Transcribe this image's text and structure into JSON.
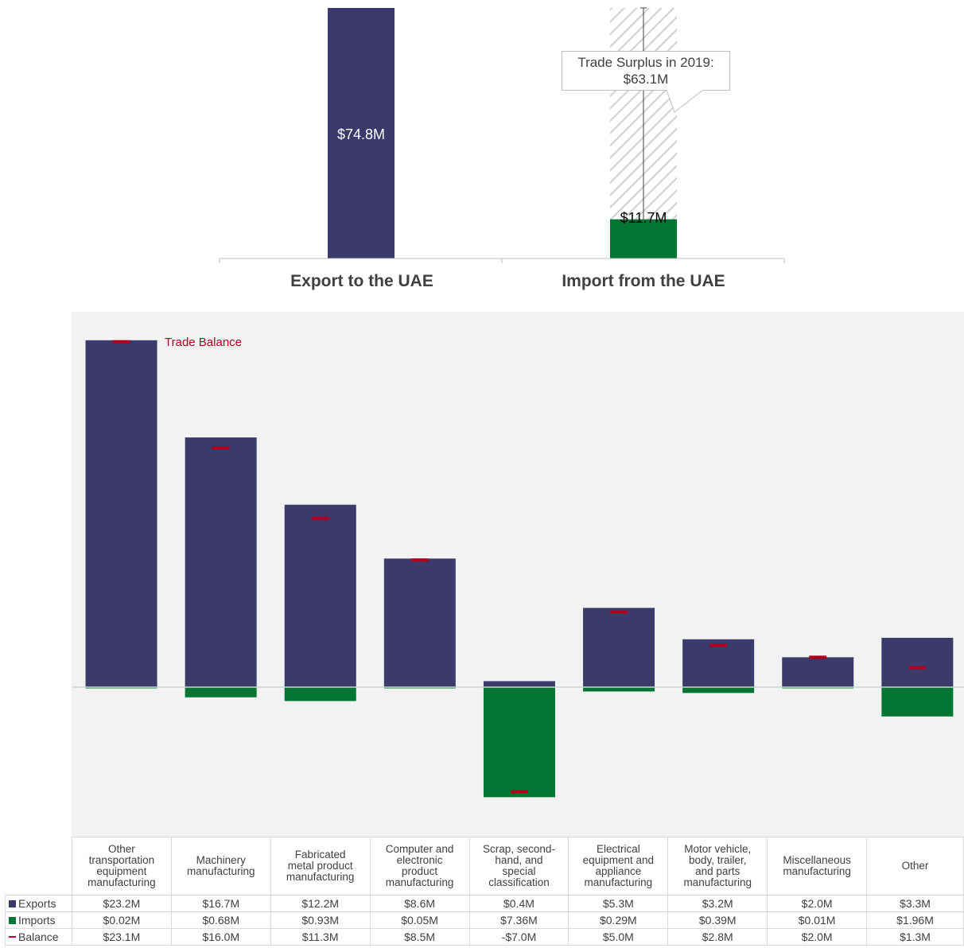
{
  "colors": {
    "exports": "#3b3a6b",
    "imports": "#007632",
    "balance": "#b00020",
    "panel": "#f2f2f2"
  },
  "chart_data": [
    {
      "type": "bar",
      "categories": [
        "Export to the UAE",
        "Import from the UAE"
      ],
      "series": [
        {
          "name": "Export to the UAE",
          "values": [
            74.8,
            null
          ]
        },
        {
          "name": "Import from the UAE",
          "values": [
            null,
            11.7
          ]
        }
      ],
      "value_labels": [
        "$74.8M",
        "$11.7M"
      ],
      "annotation": {
        "line1": "Trade Surplus in 2019:",
        "line2": "$63.1M",
        "value": 63.1
      },
      "ylim": [
        0,
        74.8
      ]
    },
    {
      "type": "bar",
      "categories": [
        "Other transportation equipment manufacturing",
        "Machinery manufacturing",
        "Fabricated metal product manufacturing",
        "Computer and electronic product manufacturing",
        "Scrap, second-hand, and special classification",
        "Electrical equipment and appliance manufacturing",
        "Motor vehicle, body, trailer, and parts manufacturing",
        "Miscellaneous manufacturing",
        "Other"
      ],
      "category_lines": [
        [
          "Other",
          "transportation",
          "equipment",
          "manufacturing"
        ],
        [
          "Machinery",
          "manufacturing"
        ],
        [
          "Fabricated",
          "metal product",
          "manufacturing"
        ],
        [
          "Computer and",
          "electronic",
          "product",
          "manufacturing"
        ],
        [
          "Scrap, second-",
          "hand, and",
          "special",
          "classification"
        ],
        [
          "Electrical",
          "equipment and",
          "appliance",
          "manufacturing"
        ],
        [
          "Motor vehicle,",
          "body, trailer,",
          "and parts",
          "manufacturing"
        ],
        [
          "Miscellaneous",
          "manufacturing"
        ],
        [
          "Other"
        ]
      ],
      "series": [
        {
          "name": "Exports",
          "values": [
            23.2,
            16.7,
            12.2,
            8.6,
            0.4,
            5.3,
            3.2,
            2.0,
            3.3
          ],
          "labels": [
            "$23.2M",
            "$16.7M",
            "$12.2M",
            "$8.6M",
            "$0.4M",
            "$5.3M",
            "$3.2M",
            "$2.0M",
            "$3.3M"
          ]
        },
        {
          "name": "Imports",
          "values": [
            0.02,
            0.68,
            0.93,
            0.05,
            7.36,
            0.29,
            0.39,
            0.01,
            1.96
          ],
          "labels": [
            "$0.02M",
            "$0.68M",
            "$0.93M",
            "$0.05M",
            "$7.36M",
            "$0.29M",
            "$0.39M",
            "$0.01M",
            "$1.96M"
          ]
        },
        {
          "name": "Balance",
          "values": [
            23.1,
            16.0,
            11.3,
            8.5,
            -7.0,
            5.0,
            2.8,
            2.0,
            1.3
          ],
          "labels": [
            "$23.1M",
            "$16.0M",
            "$11.3M",
            "$8.5M",
            "-$7.0M",
            "$5.0M",
            "$2.8M",
            "$2.0M",
            "$1.3M"
          ]
        }
      ],
      "annotation": "Trade Balance",
      "legend": "table-rows"
    }
  ]
}
